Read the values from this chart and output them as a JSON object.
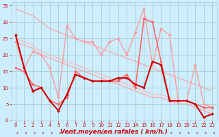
{
  "title": "",
  "xlabel": "Vent moyen/en rafales ( km/h )",
  "ylabel": "",
  "bg_color": "#cceeff",
  "grid_color": "#aacccc",
  "ylim": [
    0,
    36
  ],
  "xlim": [
    -0.5,
    23.5
  ],
  "yticks": [
    0,
    5,
    10,
    15,
    20,
    25,
    30,
    35
  ],
  "xticks": [
    0,
    1,
    2,
    3,
    4,
    5,
    6,
    7,
    8,
    9,
    10,
    11,
    12,
    13,
    14,
    15,
    16,
    17,
    18,
    19,
    20,
    21,
    22,
    23
  ],
  "lines": [
    {
      "x": [
        0,
        1,
        2,
        3,
        4,
        5,
        6,
        7,
        8,
        9,
        10,
        11,
        12,
        13,
        14,
        15,
        16,
        17,
        18,
        19,
        20,
        21,
        22,
        23
      ],
      "y": [
        34,
        33,
        32,
        30,
        28,
        27,
        26,
        25,
        24,
        23,
        22,
        21,
        20,
        19,
        18,
        17,
        16,
        15,
        14,
        13,
        12,
        11,
        10,
        9
      ],
      "color": "#ffaaaa",
      "lw": 1.0,
      "marker": null,
      "zorder": 1
    },
    {
      "x": [
        0,
        1,
        2,
        3,
        4,
        5,
        6,
        7,
        8,
        9,
        10,
        11,
        12,
        13,
        14,
        15,
        16,
        17,
        18,
        19,
        20,
        21,
        22,
        23
      ],
      "y": [
        24,
        23,
        22,
        20,
        19,
        18,
        17,
        16,
        15,
        14,
        13,
        12,
        11,
        10,
        9,
        8,
        7,
        7,
        6,
        5,
        5,
        4,
        3,
        2
      ],
      "color": "#ffaaaa",
      "lw": 1.0,
      "marker": null,
      "zorder": 1
    },
    {
      "x": [
        0,
        1,
        2,
        3,
        4,
        5,
        6,
        7,
        8,
        9,
        10,
        11,
        12,
        13,
        14,
        15,
        16,
        17,
        18,
        19,
        20,
        21,
        22,
        23
      ],
      "y": [
        25,
        24,
        23,
        21,
        20,
        19,
        18,
        17,
        16,
        15,
        14,
        13,
        12,
        11,
        10,
        9,
        8,
        8,
        7,
        6,
        6,
        5,
        4,
        3
      ],
      "color": "#ffbbbb",
      "lw": 1.0,
      "marker": null,
      "zorder": 1
    },
    {
      "x": [
        0,
        1,
        2,
        3,
        4,
        5,
        6,
        7,
        8,
        9,
        10,
        11,
        12,
        13,
        14,
        15,
        16,
        17,
        18,
        19,
        20,
        21,
        22,
        23
      ],
      "y": [
        16,
        15,
        11,
        10,
        6,
        5,
        7,
        15,
        13,
        12,
        12,
        12,
        12,
        14,
        10,
        31,
        30,
        18,
        6,
        6,
        6,
        5,
        4,
        4
      ],
      "color": "#ff6666",
      "lw": 1.2,
      "marker": "D",
      "ms": 2.0,
      "zorder": 3
    },
    {
      "x": [
        0,
        1,
        2,
        3,
        4,
        5,
        6,
        7,
        8,
        9,
        10,
        11,
        12,
        13,
        14,
        15,
        16,
        17,
        18,
        19,
        20,
        21,
        22,
        23
      ],
      "y": [
        26,
        16,
        9,
        10,
        6,
        3,
        8,
        14,
        13,
        12,
        12,
        12,
        13,
        13,
        11,
        10,
        18,
        17,
        6,
        6,
        6,
        5,
        1,
        2
      ],
      "color": "#cc0000",
      "lw": 1.5,
      "marker": "D",
      "ms": 2.0,
      "zorder": 4
    },
    {
      "x": [
        0,
        1,
        2,
        3,
        4,
        5,
        6,
        7,
        8,
        9,
        10,
        11,
        12,
        13,
        14,
        15,
        16,
        17,
        18,
        19,
        20,
        21,
        22,
        23
      ],
      "y": [
        24,
        16,
        21,
        20,
        16,
        7,
        29,
        25,
        24,
        24,
        20,
        24,
        25,
        20,
        27,
        34,
        17,
        28,
        26,
        6,
        6,
        17,
        5,
        4
      ],
      "color": "#ff9999",
      "lw": 1.0,
      "marker": "D",
      "ms": 2.0,
      "zorder": 2
    }
  ],
  "tick_fontsize": 5.0,
  "label_fontsize": 6.5
}
